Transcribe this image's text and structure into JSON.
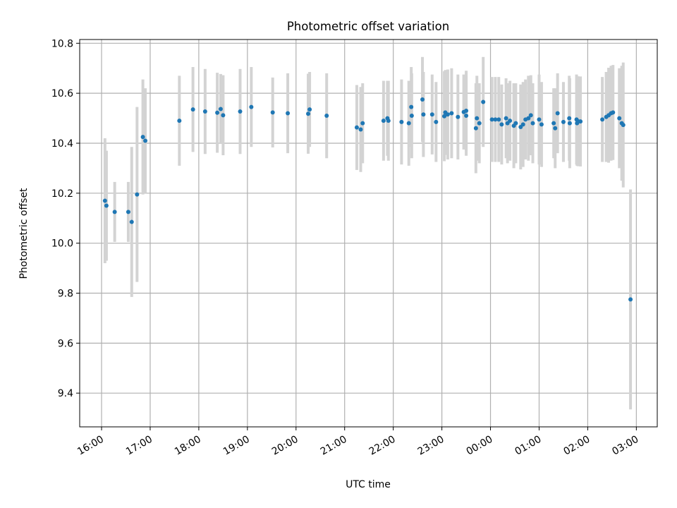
{
  "chart_data": {
    "type": "scatter",
    "title": "Photometric offset variation",
    "xlabel": "UTC time",
    "ylabel": "Photometric offset",
    "x_unit": "hours",
    "xlim": [
      15.55,
      27.43
    ],
    "ylim": [
      9.265,
      10.815
    ],
    "x_ticks": [
      16,
      17,
      18,
      19,
      20,
      21,
      22,
      23,
      24,
      25,
      26,
      27
    ],
    "x_tick_labels": [
      "16:00",
      "17:00",
      "18:00",
      "19:00",
      "20:00",
      "21:00",
      "22:00",
      "23:00",
      "00:00",
      "01:00",
      "02:00",
      "03:00"
    ],
    "y_ticks": [
      9.4,
      9.6,
      9.8,
      10.0,
      10.2,
      10.4,
      10.6,
      10.8
    ],
    "y_tick_labels": [
      "9.4",
      "9.6",
      "9.8",
      "10.0",
      "10.2",
      "10.4",
      "10.6",
      "10.8"
    ],
    "grid": true,
    "series": [
      {
        "values": [
          [
            16.07,
            10.17
          ],
          [
            16.1,
            10.15
          ],
          [
            16.27,
            10.125
          ],
          [
            16.55,
            10.125
          ],
          [
            16.62,
            10.085
          ],
          [
            16.73,
            10.195
          ],
          [
            16.85,
            10.425
          ],
          [
            16.9,
            10.41
          ],
          [
            17.6,
            10.49
          ],
          [
            17.88,
            10.535
          ],
          [
            18.13,
            10.527
          ],
          [
            18.38,
            10.522
          ],
          [
            18.45,
            10.537
          ],
          [
            18.5,
            10.512
          ],
          [
            18.85,
            10.527
          ],
          [
            19.08,
            10.545
          ],
          [
            19.52,
            10.523
          ],
          [
            19.83,
            10.52
          ],
          [
            20.25,
            10.518
          ],
          [
            20.28,
            10.535
          ],
          [
            20.63,
            10.51
          ],
          [
            21.25,
            10.463
          ],
          [
            21.33,
            10.455
          ],
          [
            21.37,
            10.48
          ],
          [
            21.8,
            10.49
          ],
          [
            21.88,
            10.5
          ],
          [
            21.9,
            10.49
          ],
          [
            22.17,
            10.485
          ],
          [
            22.32,
            10.48
          ],
          [
            22.37,
            10.545
          ],
          [
            22.38,
            10.51
          ],
          [
            22.6,
            10.575
          ],
          [
            22.62,
            10.515
          ],
          [
            22.8,
            10.515
          ],
          [
            22.88,
            10.485
          ],
          [
            23.05,
            10.508
          ],
          [
            23.07,
            10.523
          ],
          [
            23.12,
            10.515
          ],
          [
            23.2,
            10.52
          ],
          [
            23.33,
            10.505
          ],
          [
            23.45,
            10.525
          ],
          [
            23.5,
            10.53
          ],
          [
            23.5,
            10.51
          ],
          [
            23.7,
            10.46
          ],
          [
            23.72,
            10.5
          ],
          [
            23.77,
            10.48
          ],
          [
            23.85,
            10.565
          ],
          [
            24.03,
            10.495
          ],
          [
            24.1,
            10.495
          ],
          [
            24.17,
            10.495
          ],
          [
            24.23,
            10.475
          ],
          [
            24.32,
            10.5
          ],
          [
            24.35,
            10.48
          ],
          [
            24.4,
            10.49
          ],
          [
            24.48,
            10.47
          ],
          [
            24.52,
            10.48
          ],
          [
            24.62,
            10.465
          ],
          [
            24.67,
            10.475
          ],
          [
            24.72,
            10.495
          ],
          [
            24.78,
            10.5
          ],
          [
            24.83,
            10.512
          ],
          [
            24.87,
            10.48
          ],
          [
            25.0,
            10.495
          ],
          [
            25.05,
            10.475
          ],
          [
            25.3,
            10.48
          ],
          [
            25.33,
            10.46
          ],
          [
            25.38,
            10.52
          ],
          [
            25.5,
            10.485
          ],
          [
            25.62,
            10.5
          ],
          [
            25.63,
            10.48
          ],
          [
            25.77,
            10.495
          ],
          [
            25.78,
            10.48
          ],
          [
            25.8,
            10.488
          ],
          [
            25.85,
            10.487
          ],
          [
            26.3,
            10.495
          ],
          [
            26.38,
            10.505
          ],
          [
            26.43,
            10.512
          ],
          [
            26.48,
            10.52
          ],
          [
            26.52,
            10.523
          ],
          [
            26.65,
            10.5
          ],
          [
            26.7,
            10.48
          ],
          [
            26.73,
            10.473
          ],
          [
            26.88,
            9.775
          ]
        ],
        "error": [
          0.25,
          0.22,
          0.12,
          0.12,
          0.3,
          0.35,
          0.23,
          0.21,
          0.18,
          0.17,
          0.17,
          0.16,
          0.14,
          0.16,
          0.17,
          0.16,
          0.14,
          0.16,
          0.16,
          0.15,
          0.17,
          0.17,
          0.17,
          0.16,
          0.16,
          0.15,
          0.16,
          0.17,
          0.17,
          0.16,
          0.17,
          0.17,
          0.17,
          0.16,
          0.16,
          0.18,
          0.17,
          0.18,
          0.18,
          0.17,
          0.15,
          0.16,
          0.16,
          0.18,
          0.17,
          0.16,
          0.18,
          0.17,
          0.17,
          0.17,
          0.16,
          0.16,
          0.16,
          0.16,
          0.17,
          0.16,
          0.17,
          0.17,
          0.16,
          0.17,
          0.16,
          0.16,
          0.18,
          0.17,
          0.14,
          0.16,
          0.16,
          0.16,
          0.17,
          0.18,
          0.18,
          0.17,
          0.18,
          0.18,
          0.17,
          0.18,
          0.19,
          0.19,
          0.19,
          0.2,
          0.23,
          0.25,
          0.44
        ]
      }
    ],
    "colors": {
      "marker": "#1f77b4",
      "errorbar": "#d3d3d3",
      "grid": "#b0b0b0",
      "axes": "#000000"
    }
  }
}
